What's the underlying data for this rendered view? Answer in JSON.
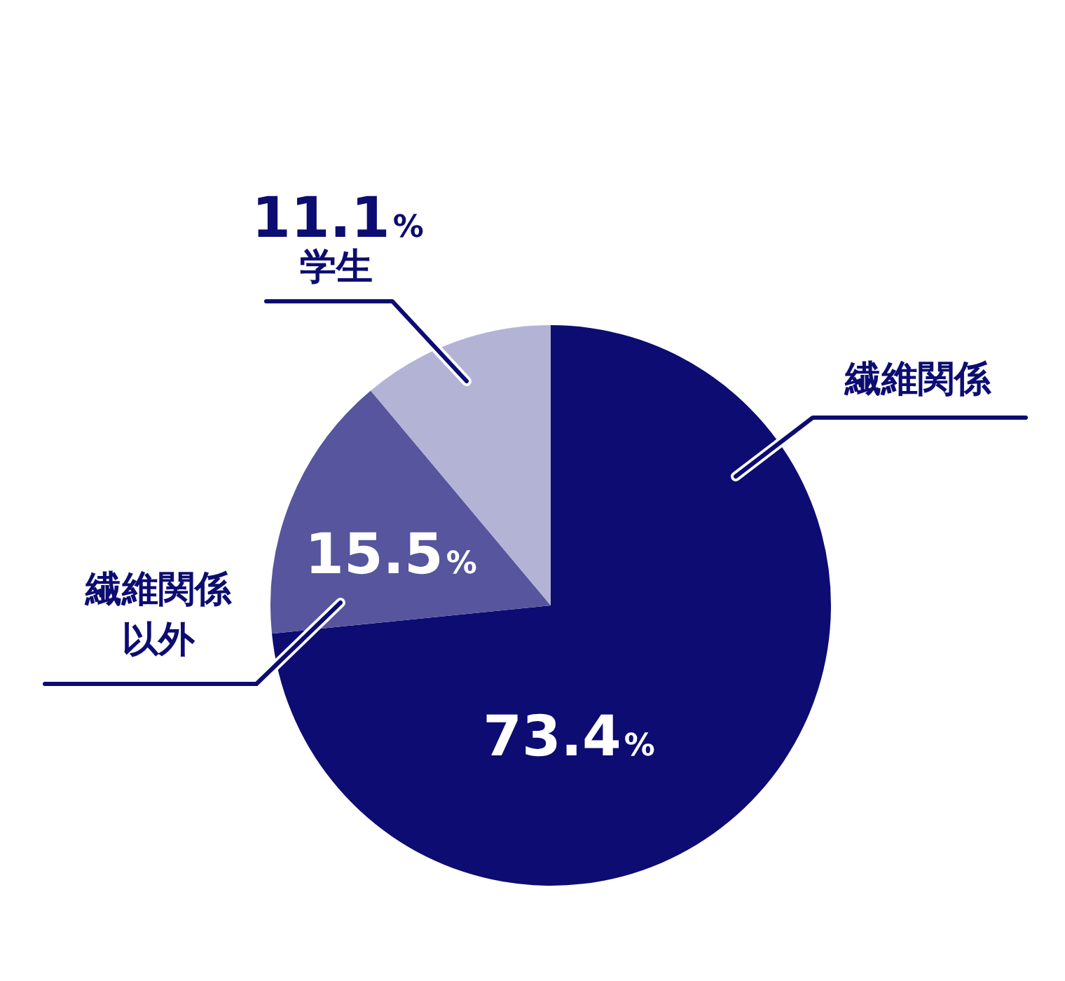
{
  "chart_data": {
    "type": "pie",
    "categories": [
      "繊維関係",
      "繊維関係以外",
      "学生"
    ],
    "values": [
      73.4,
      15.5,
      11.1
    ],
    "colors": [
      "#0c0c72",
      "#56559e",
      "#b3b3d6"
    ],
    "value_labels": [
      "73.4%",
      "15.5%",
      "11.1%"
    ],
    "legend": false
  }
}
